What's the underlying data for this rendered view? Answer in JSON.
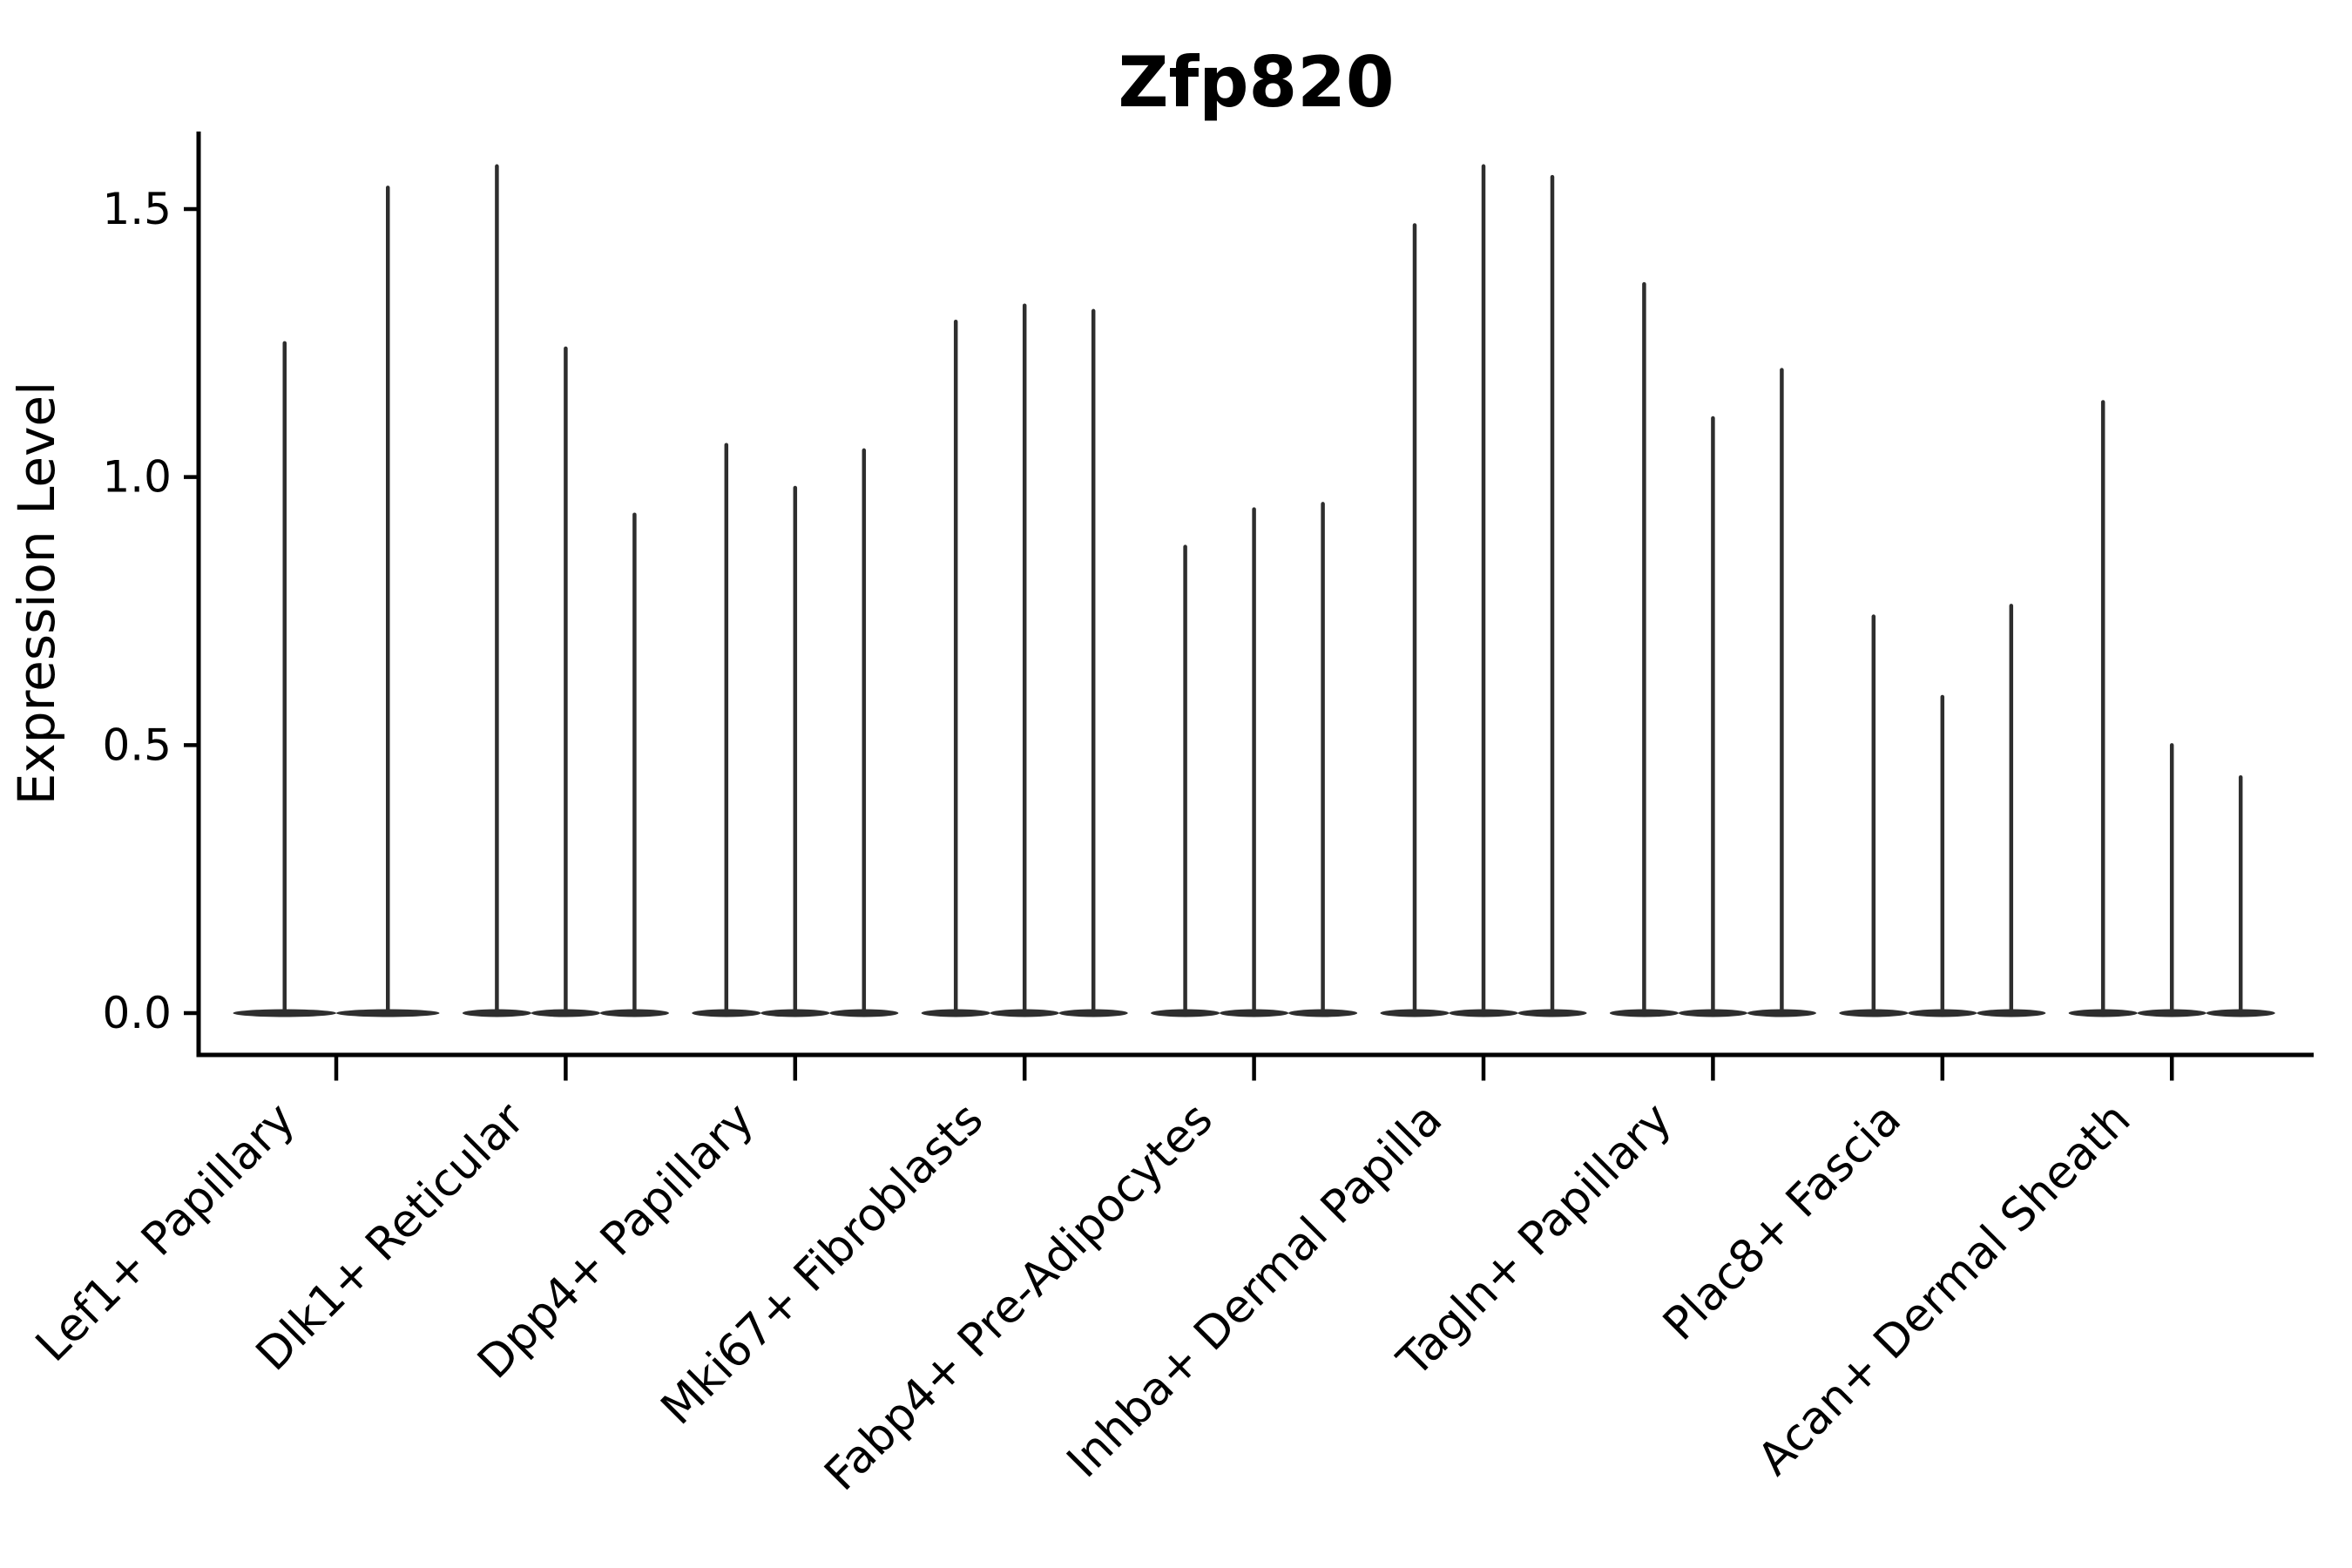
{
  "chart_data": {
    "type": "violin",
    "title": "Zfp820",
    "xlabel": "",
    "ylabel": "Expression Level",
    "ylim": [
      -0.08,
      1.64
    ],
    "grid": false,
    "legend_position": "none",
    "x_tick_rotation_deg": 45,
    "yticks": [
      {
        "value": 0.0,
        "label": "0.0"
      },
      {
        "value": 0.5,
        "label": "0.5"
      },
      {
        "value": 1.0,
        "label": "1.0"
      },
      {
        "value": 1.5,
        "label": "1.5"
      }
    ],
    "categories": [
      "Lef1+ Papillary",
      "Dlk1+ Reticular",
      "Dpp4+ Papillary",
      "Mki67+ Fibroblasts",
      "Fabp4+ Pre-Adipocytes",
      "Inhba+ Dermal Papilla",
      "Tagln+ Papillary",
      "Plac8+ Fascia",
      "Acan+ Dermal Sheath"
    ],
    "groups": [
      {
        "category": "Lef1+ Papillary",
        "violin_max_values": [
          1.25,
          1.54
        ]
      },
      {
        "category": "Dlk1+ Reticular",
        "violin_max_values": [
          1.58,
          1.24,
          0.93
        ]
      },
      {
        "category": "Dpp4+ Papillary",
        "violin_max_values": [
          1.06,
          0.98,
          1.05
        ]
      },
      {
        "category": "Mki67+ Fibroblasts",
        "violin_max_values": [
          1.29,
          1.32,
          1.31
        ]
      },
      {
        "category": "Fabp4+ Pre-Adipocytes",
        "violin_max_values": [
          0.87,
          0.94,
          0.95
        ]
      },
      {
        "category": "Inhba+ Dermal Papilla",
        "violin_max_values": [
          1.47,
          1.58,
          1.56
        ]
      },
      {
        "category": "Tagln+ Papillary",
        "violin_max_values": [
          1.36,
          1.11,
          1.2
        ]
      },
      {
        "category": "Plac8+ Fascia",
        "violin_max_values": [
          0.74,
          0.59,
          0.76
        ]
      },
      {
        "category": "Acan+ Dermal Sheath",
        "violin_max_values": [
          1.14,
          0.5,
          0.44
        ]
      }
    ],
    "violin_description": "sparse expression violins: wide flat base at 0 with thin vertical spike up to max value",
    "colors": {
      "violin": "#2e2e2e",
      "axis": "#000000",
      "text": "#000000",
      "background": "#ffffff"
    }
  }
}
